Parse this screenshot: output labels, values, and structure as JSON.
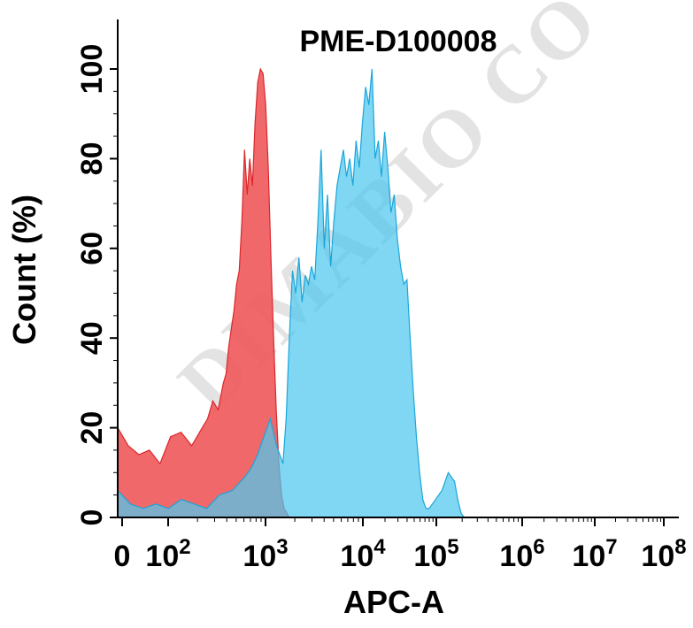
{
  "chart_data": {
    "type": "area",
    "title": "PME-D100008",
    "xlabel": "APC-A",
    "ylabel": "Count  (%)",
    "x_scale": "biexponential (log)",
    "xlim": [
      0,
      100000000
    ],
    "ylim": [
      0,
      100
    ],
    "x_tick_labels": [
      {
        "base": "0",
        "exp": ""
      },
      {
        "base": "10",
        "exp": "2"
      },
      {
        "base": "10",
        "exp": "3"
      },
      {
        "base": "10",
        "exp": "4"
      },
      {
        "base": "10",
        "exp": "5"
      },
      {
        "base": "10",
        "exp": "6"
      },
      {
        "base": "10",
        "exp": "7"
      },
      {
        "base": "10",
        "exp": "8"
      }
    ],
    "y_tick_labels": [
      "0",
      "20",
      "40",
      "60",
      "80",
      "100"
    ],
    "grid": false,
    "legend": "none",
    "series": [
      {
        "color": "#f0585a",
        "x_log10": [
          0.0,
          0.2,
          0.4,
          0.6,
          0.8,
          1.0,
          1.2,
          1.4,
          1.6,
          1.7,
          1.8,
          1.9,
          2.0,
          2.05,
          2.1,
          2.15,
          2.2,
          2.25,
          2.3,
          2.35,
          2.4,
          2.45,
          2.5,
          2.55,
          2.6,
          2.65,
          2.7,
          2.75,
          2.8,
          2.85,
          2.9,
          2.95,
          3.0,
          3.05,
          3.1,
          3.15,
          3.2,
          3.25,
          3.3
        ],
        "values": [
          20,
          16,
          14,
          15,
          12,
          18,
          19,
          16,
          20,
          22,
          26,
          24,
          30,
          32,
          38,
          42,
          46,
          52,
          55,
          66,
          82,
          72,
          80,
          74,
          88,
          97,
          100,
          99,
          92,
          78,
          58,
          40,
          24,
          12,
          5,
          2,
          1,
          0,
          0
        ]
      },
      {
        "color": "#4fc8ef",
        "x_log10": [
          0.0,
          0.2,
          0.4,
          0.6,
          0.8,
          1.0,
          1.2,
          1.4,
          1.6,
          1.8,
          2.0,
          2.1,
          2.2,
          2.3,
          2.4,
          2.5,
          2.6,
          2.65,
          2.7,
          2.75,
          2.8,
          2.85,
          2.9,
          2.95,
          3.0,
          3.05,
          3.1,
          3.15,
          3.2,
          3.25,
          3.3,
          3.35,
          3.4,
          3.45,
          3.5,
          3.55,
          3.6,
          3.65,
          3.7,
          3.75,
          3.8,
          3.85,
          3.9,
          3.95,
          4.0,
          4.05,
          4.1,
          4.15,
          4.2,
          4.25,
          4.3,
          4.35,
          4.4,
          4.45,
          4.5,
          4.55,
          4.6,
          4.65,
          4.7,
          4.75,
          4.8,
          4.85,
          4.9,
          4.95,
          5.0,
          5.1,
          5.2,
          5.3,
          5.35,
          5.4,
          5.45,
          5.5
        ],
        "values": [
          6,
          3,
          2,
          3,
          2,
          4,
          3,
          2,
          5,
          6,
          9,
          11,
          14,
          18,
          22,
          16,
          12,
          22,
          40,
          55,
          50,
          58,
          48,
          54,
          52,
          56,
          53,
          66,
          82,
          60,
          72,
          56,
          66,
          74,
          78,
          82,
          76,
          80,
          74,
          84,
          78,
          88,
          96,
          92,
          100,
          80,
          84,
          76,
          86,
          78,
          68,
          72,
          62,
          56,
          52,
          53,
          40,
          28,
          18,
          10,
          4,
          2,
          2,
          3,
          4,
          6,
          10,
          8,
          4,
          1,
          0,
          0
        ]
      }
    ]
  }
}
